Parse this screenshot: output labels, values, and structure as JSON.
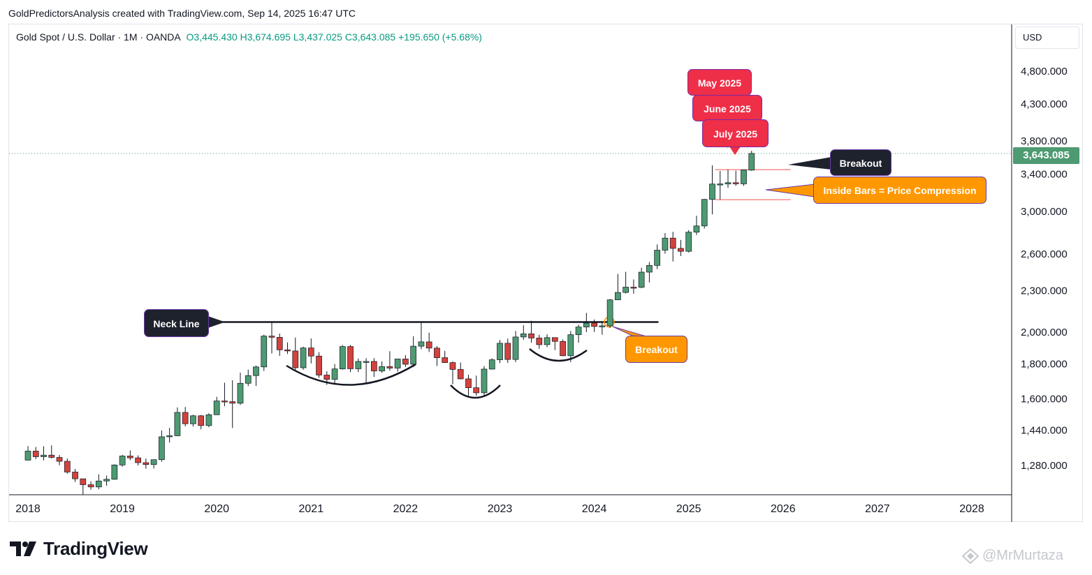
{
  "header": {
    "credit": "GoldPredictorsAnalysis created with TradingView.com, Sep 14, 2025 16:47 UTC"
  },
  "symbol": {
    "name": "Gold Spot / U.S. Dollar · 1M · OANDA",
    "ohlc": "O3,445.430  H3,674.695  L3,437.025  C3,643.085  +195.650 (+5.68%)"
  },
  "currency": "USD",
  "last_price": "3,643.085",
  "colors": {
    "up": "#4e9a72",
    "down": "#d3423c",
    "accent_red": "#ef2e48",
    "accent_orange": "#ff9800",
    "dark": "#1e222d"
  },
  "annotations": {
    "may": "May 2025",
    "june": "June 2025",
    "july": "July 2025",
    "breakout_top": "Breakout",
    "inside_bars": "Inside Bars = Price Compression",
    "neck_line": "Neck Line",
    "breakout_bottom": "Breakout"
  },
  "brand": {
    "logo_icon": "tradingview-logo-icon",
    "name": "TradingView"
  },
  "watermark": "@MrMurtaza",
  "chart_data": {
    "type": "candlestick",
    "title": "",
    "xlabel": "",
    "ylabel": "",
    "y_scale": "log",
    "ylim": [
      1170,
      5300
    ],
    "x_ticks": [
      "2018",
      "2019",
      "2020",
      "2021",
      "2022",
      "2023",
      "2024",
      "2025",
      "2026",
      "2027",
      "2028"
    ],
    "y_ticks": [
      "1,280.000",
      "1,440.000",
      "1,600.000",
      "1,800.000",
      "2,000.000",
      "2,300.000",
      "2,600.000",
      "3,000.000",
      "3,400.000",
      "3,800.000",
      "4,300.000",
      "4,800.000"
    ],
    "y_tick_values": [
      1280,
      1440,
      1600,
      1800,
      2000,
      2300,
      2600,
      3000,
      3400,
      3800,
      4300,
      4800
    ],
    "neck_line": 2070,
    "inside_bar_high": 3450,
    "inside_bar_low": 3120,
    "candles": [
      {
        "d": "2018-01",
        "o": 1303,
        "h": 1366,
        "l": 1302,
        "c": 1343
      },
      {
        "d": "2018-02",
        "o": 1343,
        "h": 1362,
        "l": 1307,
        "c": 1318
      },
      {
        "d": "2018-03",
        "o": 1318,
        "h": 1365,
        "l": 1302,
        "c": 1325
      },
      {
        "d": "2018-04",
        "o": 1325,
        "h": 1369,
        "l": 1310,
        "c": 1315
      },
      {
        "d": "2018-05",
        "o": 1315,
        "h": 1326,
        "l": 1281,
        "c": 1298
      },
      {
        "d": "2018-06",
        "o": 1298,
        "h": 1310,
        "l": 1245,
        "c": 1252
      },
      {
        "d": "2018-07",
        "o": 1252,
        "h": 1265,
        "l": 1211,
        "c": 1224
      },
      {
        "d": "2018-08",
        "o": 1224,
        "h": 1215,
        "l": 1160,
        "c": 1200
      },
      {
        "d": "2018-09",
        "o": 1200,
        "h": 1214,
        "l": 1180,
        "c": 1191
      },
      {
        "d": "2018-10",
        "o": 1191,
        "h": 1243,
        "l": 1182,
        "c": 1215
      },
      {
        "d": "2018-11",
        "o": 1215,
        "h": 1237,
        "l": 1196,
        "c": 1222
      },
      {
        "d": "2018-12",
        "o": 1222,
        "h": 1285,
        "l": 1220,
        "c": 1282
      },
      {
        "d": "2019-01",
        "o": 1282,
        "h": 1326,
        "l": 1275,
        "c": 1321
      },
      {
        "d": "2019-02",
        "o": 1321,
        "h": 1346,
        "l": 1303,
        "c": 1313
      },
      {
        "d": "2019-03",
        "o": 1313,
        "h": 1324,
        "l": 1280,
        "c": 1292
      },
      {
        "d": "2019-04",
        "o": 1292,
        "h": 1310,
        "l": 1266,
        "c": 1284
      },
      {
        "d": "2019-05",
        "o": 1284,
        "h": 1306,
        "l": 1267,
        "c": 1305
      },
      {
        "d": "2019-06",
        "o": 1305,
        "h": 1439,
        "l": 1296,
        "c": 1409
      },
      {
        "d": "2019-07",
        "o": 1409,
        "h": 1452,
        "l": 1382,
        "c": 1414
      },
      {
        "d": "2019-08",
        "o": 1414,
        "h": 1555,
        "l": 1412,
        "c": 1529
      },
      {
        "d": "2019-09",
        "o": 1529,
        "h": 1557,
        "l": 1459,
        "c": 1472
      },
      {
        "d": "2019-10",
        "o": 1472,
        "h": 1517,
        "l": 1458,
        "c": 1512
      },
      {
        "d": "2019-11",
        "o": 1512,
        "h": 1516,
        "l": 1445,
        "c": 1463
      },
      {
        "d": "2019-12",
        "o": 1463,
        "h": 1525,
        "l": 1455,
        "c": 1517
      },
      {
        "d": "2020-01",
        "o": 1517,
        "h": 1611,
        "l": 1517,
        "c": 1589
      },
      {
        "d": "2020-02",
        "o": 1589,
        "h": 1689,
        "l": 1561,
        "c": 1585
      },
      {
        "d": "2020-03",
        "o": 1585,
        "h": 1703,
        "l": 1451,
        "c": 1577
      },
      {
        "d": "2020-04",
        "o": 1577,
        "h": 1747,
        "l": 1568,
        "c": 1686
      },
      {
        "d": "2020-05",
        "o": 1686,
        "h": 1765,
        "l": 1670,
        "c": 1730
      },
      {
        "d": "2020-06",
        "o": 1730,
        "h": 1789,
        "l": 1671,
        "c": 1781
      },
      {
        "d": "2020-07",
        "o": 1781,
        "h": 1984,
        "l": 1757,
        "c": 1975
      },
      {
        "d": "2020-08",
        "o": 1975,
        "h": 2075,
        "l": 1863,
        "c": 1967
      },
      {
        "d": "2020-09",
        "o": 1967,
        "h": 1992,
        "l": 1848,
        "c": 1886
      },
      {
        "d": "2020-10",
        "o": 1886,
        "h": 1933,
        "l": 1860,
        "c": 1879
      },
      {
        "d": "2020-11",
        "o": 1879,
        "h": 1965,
        "l": 1764,
        "c": 1776
      },
      {
        "d": "2020-12",
        "o": 1776,
        "h": 1906,
        "l": 1764,
        "c": 1898
      },
      {
        "d": "2021-01",
        "o": 1898,
        "h": 1959,
        "l": 1802,
        "c": 1847
      },
      {
        "d": "2021-02",
        "o": 1847,
        "h": 1871,
        "l": 1717,
        "c": 1733
      },
      {
        "d": "2021-03",
        "o": 1733,
        "h": 1755,
        "l": 1677,
        "c": 1708
      },
      {
        "d": "2021-04",
        "o": 1708,
        "h": 1798,
        "l": 1677,
        "c": 1769
      },
      {
        "d": "2021-05",
        "o": 1769,
        "h": 1916,
        "l": 1765,
        "c": 1907
      },
      {
        "d": "2021-06",
        "o": 1907,
        "h": 1917,
        "l": 1750,
        "c": 1770
      },
      {
        "d": "2021-07",
        "o": 1770,
        "h": 1832,
        "l": 1750,
        "c": 1814
      },
      {
        "d": "2021-08",
        "o": 1814,
        "h": 1834,
        "l": 1687,
        "c": 1814
      },
      {
        "d": "2021-09",
        "o": 1814,
        "h": 1834,
        "l": 1722,
        "c": 1757
      },
      {
        "d": "2021-10",
        "o": 1757,
        "h": 1814,
        "l": 1746,
        "c": 1783
      },
      {
        "d": "2021-11",
        "o": 1783,
        "h": 1877,
        "l": 1759,
        "c": 1774
      },
      {
        "d": "2021-12",
        "o": 1774,
        "h": 1831,
        "l": 1753,
        "c": 1829
      },
      {
        "d": "2022-01",
        "o": 1829,
        "h": 1853,
        "l": 1781,
        "c": 1797
      },
      {
        "d": "2022-02",
        "o": 1797,
        "h": 1974,
        "l": 1780,
        "c": 1909
      },
      {
        "d": "2022-03",
        "o": 1909,
        "h": 2070,
        "l": 1890,
        "c": 1937
      },
      {
        "d": "2022-04",
        "o": 1937,
        "h": 1998,
        "l": 1872,
        "c": 1897
      },
      {
        "d": "2022-05",
        "o": 1897,
        "h": 1910,
        "l": 1787,
        "c": 1837
      },
      {
        "d": "2022-06",
        "o": 1837,
        "h": 1879,
        "l": 1805,
        "c": 1807
      },
      {
        "d": "2022-07",
        "o": 1807,
        "h": 1814,
        "l": 1681,
        "c": 1766
      },
      {
        "d": "2022-08",
        "o": 1766,
        "h": 1808,
        "l": 1709,
        "c": 1711
      },
      {
        "d": "2022-09",
        "o": 1711,
        "h": 1735,
        "l": 1615,
        "c": 1661
      },
      {
        "d": "2022-10",
        "o": 1661,
        "h": 1730,
        "l": 1617,
        "c": 1633
      },
      {
        "d": "2022-11",
        "o": 1633,
        "h": 1786,
        "l": 1616,
        "c": 1768
      },
      {
        "d": "2022-12",
        "o": 1768,
        "h": 1833,
        "l": 1765,
        "c": 1824
      },
      {
        "d": "2023-01",
        "o": 1824,
        "h": 1949,
        "l": 1804,
        "c": 1928
      },
      {
        "d": "2023-02",
        "o": 1928,
        "h": 1959,
        "l": 1805,
        "c": 1826
      },
      {
        "d": "2023-03",
        "o": 1826,
        "h": 2009,
        "l": 1810,
        "c": 1969
      },
      {
        "d": "2023-04",
        "o": 1969,
        "h": 2048,
        "l": 1950,
        "c": 1990
      },
      {
        "d": "2023-05",
        "o": 1990,
        "h": 2079,
        "l": 1932,
        "c": 1962
      },
      {
        "d": "2023-06",
        "o": 1962,
        "h": 1984,
        "l": 1893,
        "c": 1919
      },
      {
        "d": "2023-07",
        "o": 1919,
        "h": 1987,
        "l": 1903,
        "c": 1965
      },
      {
        "d": "2023-08",
        "o": 1965,
        "h": 1948,
        "l": 1884,
        "c": 1940
      },
      {
        "d": "2023-09",
        "o": 1940,
        "h": 1953,
        "l": 1846,
        "c": 1849
      },
      {
        "d": "2023-10",
        "o": 1849,
        "h": 2009,
        "l": 1810,
        "c": 1984
      },
      {
        "d": "2023-11",
        "o": 1984,
        "h": 2052,
        "l": 1932,
        "c": 2036
      },
      {
        "d": "2023-12",
        "o": 2036,
        "h": 2135,
        "l": 2001,
        "c": 2063
      },
      {
        "d": "2024-01",
        "o": 2063,
        "h": 2088,
        "l": 2002,
        "c": 2040
      },
      {
        "d": "2024-02",
        "o": 2040,
        "h": 2066,
        "l": 1984,
        "c": 2044
      },
      {
        "d": "2024-03",
        "o": 2044,
        "h": 2236,
        "l": 2030,
        "c": 2230
      },
      {
        "d": "2024-04",
        "o": 2230,
        "h": 2432,
        "l": 2229,
        "c": 2286
      },
      {
        "d": "2024-05",
        "o": 2286,
        "h": 2450,
        "l": 2278,
        "c": 2327
      },
      {
        "d": "2024-06",
        "o": 2327,
        "h": 2388,
        "l": 2277,
        "c": 2326
      },
      {
        "d": "2024-07",
        "o": 2326,
        "h": 2484,
        "l": 2318,
        "c": 2447
      },
      {
        "d": "2024-08",
        "o": 2447,
        "h": 2531,
        "l": 2364,
        "c": 2503
      },
      {
        "d": "2024-09",
        "o": 2503,
        "h": 2685,
        "l": 2472,
        "c": 2634
      },
      {
        "d": "2024-10",
        "o": 2634,
        "h": 2790,
        "l": 2603,
        "c": 2743
      },
      {
        "d": "2024-11",
        "o": 2743,
        "h": 2801,
        "l": 2536,
        "c": 2650
      },
      {
        "d": "2024-12",
        "o": 2650,
        "h": 2726,
        "l": 2583,
        "c": 2624
      },
      {
        "d": "2025-01",
        "o": 2624,
        "h": 2817,
        "l": 2614,
        "c": 2798
      },
      {
        "d": "2025-02",
        "o": 2798,
        "h": 2956,
        "l": 2772,
        "c": 2857
      },
      {
        "d": "2025-03",
        "o": 2857,
        "h": 3128,
        "l": 2833,
        "c": 3123
      },
      {
        "d": "2025-04",
        "o": 3123,
        "h": 3500,
        "l": 2970,
        "c": 3288
      },
      {
        "d": "2025-05",
        "o": 3288,
        "h": 3435,
        "l": 3120,
        "c": 3289
      },
      {
        "d": "2025-06",
        "o": 3289,
        "h": 3452,
        "l": 3247,
        "c": 3303
      },
      {
        "d": "2025-07",
        "o": 3303,
        "h": 3439,
        "l": 3268,
        "c": 3290
      },
      {
        "d": "2025-08",
        "o": 3290,
        "h": 3450,
        "l": 3268,
        "c": 3448
      },
      {
        "d": "2025-09",
        "o": 3445,
        "h": 3675,
        "l": 3437,
        "c": 3643
      }
    ]
  }
}
